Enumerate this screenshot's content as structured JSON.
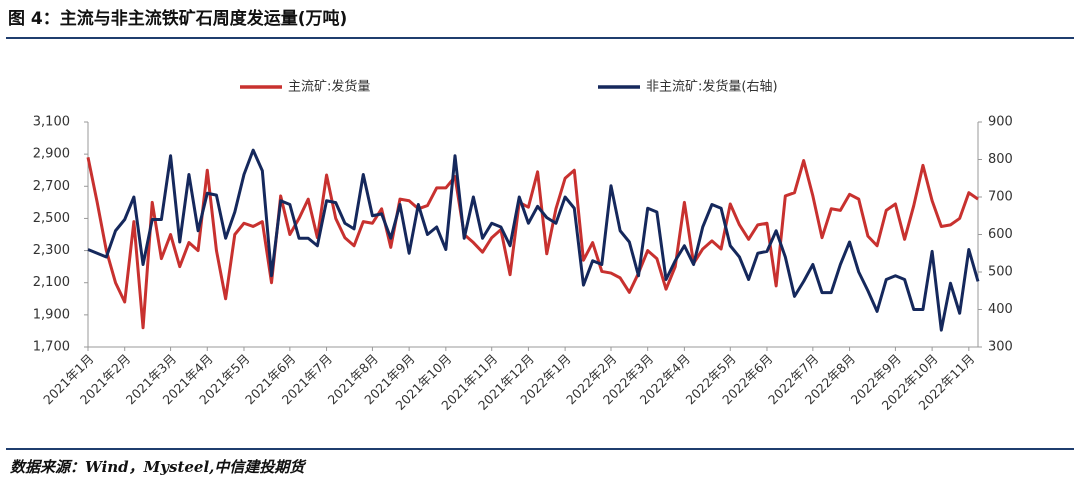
{
  "chart_data": {
    "type": "line",
    "title": "图 4：主流与非主流铁矿石周度发运量(万吨)",
    "source": "数据来源：Wind，Mysteel,中信建投期货",
    "categories": [
      "2021年1月",
      null,
      null,
      null,
      "2021年2月",
      null,
      null,
      null,
      null,
      "2021年3月",
      null,
      null,
      null,
      "2021年4月",
      null,
      null,
      null,
      "2021年5月",
      null,
      null,
      null,
      null,
      "2021年6月",
      null,
      null,
      null,
      "2021年7月",
      null,
      null,
      null,
      null,
      "2021年8月",
      null,
      null,
      null,
      "2021年9月",
      null,
      null,
      null,
      "2021年10月",
      null,
      null,
      null,
      null,
      "2021年11月",
      null,
      null,
      null,
      "2021年12月",
      null,
      null,
      null,
      "2022年1月",
      null,
      null,
      null,
      null,
      "2022年2月",
      null,
      null,
      null,
      "2022年3月",
      null,
      null,
      null,
      "2022年4月",
      null,
      null,
      null,
      null,
      "2022年5月",
      null,
      null,
      null,
      "2022年6月",
      null,
      null,
      null,
      null,
      "2022年7月",
      null,
      null,
      null,
      "2022年8月",
      null,
      null,
      null,
      null,
      "2022年9月",
      null,
      null,
      null,
      "2022年10月",
      null,
      null,
      null,
      "2022年11月",
      null
    ],
    "series": [
      {
        "name": "主流矿:发货量",
        "color": "#c8312f",
        "values": [
          2880,
          2600,
          2300,
          2100,
          1980,
          2480,
          1820,
          2600,
          2250,
          2400,
          2200,
          2350,
          2300,
          2800,
          2300,
          2000,
          2400,
          2470,
          2450,
          2480,
          2100,
          2640,
          2400,
          2500,
          2620,
          2380,
          2770,
          2500,
          2380,
          2330,
          2480,
          2470,
          2560,
          2320,
          2620,
          2610,
          2560,
          2580,
          2690,
          2690,
          2760,
          2400,
          2350,
          2290,
          2380,
          2430,
          2150,
          2600,
          2570,
          2790,
          2280,
          2560,
          2750,
          2800,
          2240,
          2350,
          2170,
          2160,
          2130,
          2040,
          2160,
          2300,
          2250,
          2060,
          2200,
          2600,
          2220,
          2310,
          2360,
          2310,
          2590,
          2460,
          2370,
          2460,
          2470,
          2080,
          2640,
          2660,
          2860,
          2640,
          2380,
          2560,
          2550,
          2650,
          2620,
          2390,
          2330,
          2550,
          2590,
          2370,
          2580,
          2830,
          2610,
          2450,
          2460,
          2500,
          2660,
          2620
        ]
      },
      {
        "name": "非主流矿:发货量(右轴)",
        "color": "#15285c",
        "axis": "y2",
        "values": [
          560,
          550,
          540,
          610,
          640,
          700,
          520,
          640,
          640,
          810,
          580,
          760,
          610,
          710,
          705,
          590,
          660,
          760,
          825,
          770,
          490,
          690,
          680,
          590,
          590,
          570,
          690,
          685,
          630,
          615,
          760,
          650,
          655,
          590,
          680,
          550,
          680,
          600,
          620,
          560,
          810,
          590,
          700,
          590,
          630,
          620,
          570,
          700,
          630,
          675,
          645,
          630,
          700,
          670,
          465,
          530,
          520,
          730,
          610,
          580,
          490,
          670,
          660,
          480,
          530,
          570,
          520,
          620,
          680,
          670,
          570,
          540,
          480,
          550,
          555,
          610,
          540,
          435,
          475,
          520,
          445,
          445,
          520,
          580,
          500,
          450,
          395,
          480,
          490,
          480,
          400,
          400,
          555,
          345,
          470,
          390,
          560,
          475
        ]
      }
    ],
    "ylim": [
      1700,
      3100
    ],
    "yticks": [
      {
        "value": 1700,
        "label": "1,700"
      },
      {
        "value": 1900,
        "label": "1,900"
      },
      {
        "value": 2100,
        "label": "2,100"
      },
      {
        "value": 2300,
        "label": "2,300"
      },
      {
        "value": 2500,
        "label": "2,500"
      },
      {
        "value": 2700,
        "label": "2,700"
      },
      {
        "value": 2900,
        "label": "2,900"
      },
      {
        "value": 3100,
        "label": "3,100"
      }
    ],
    "y2lim": [
      300,
      900
    ],
    "y2ticks": [
      300,
      400,
      500,
      600,
      700,
      800,
      900
    ],
    "legend": "top"
  }
}
